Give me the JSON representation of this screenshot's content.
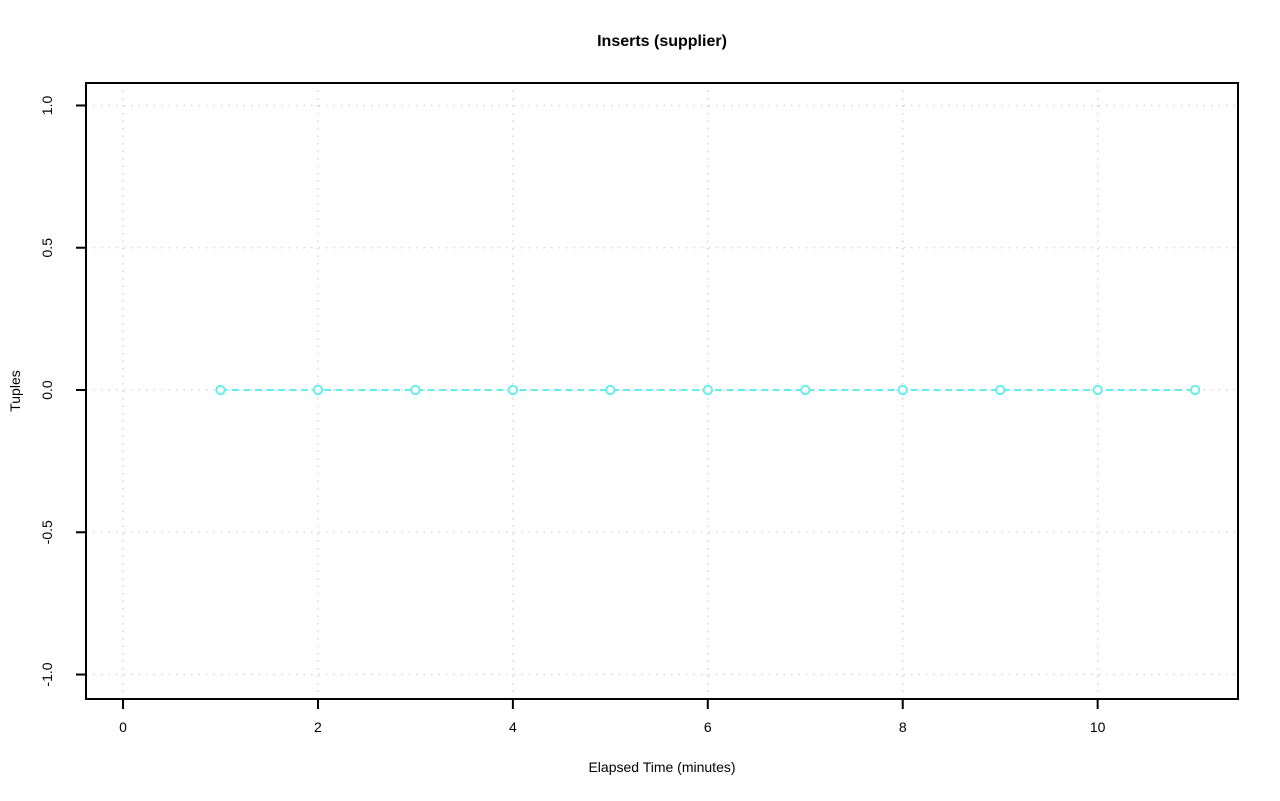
{
  "page": {
    "background": "#ffffff"
  },
  "chart_data": {
    "type": "line",
    "title": "Inserts (supplier)",
    "xlabel": "Elapsed Time (minutes)",
    "ylabel": "Tuples",
    "x": [
      1,
      2,
      3,
      4,
      5,
      6,
      7,
      8,
      9,
      10,
      11
    ],
    "series": [
      {
        "values": [
          0,
          0,
          0,
          0,
          0,
          0,
          0,
          0,
          0,
          0,
          0
        ],
        "color": "#63eeee",
        "line_style": "dashed",
        "marker": "open-circle"
      }
    ],
    "xlim": [
      -0.38,
      11.44
    ],
    "ylim": [
      -1.086,
      1.079
    ],
    "x_ticks": {
      "values": [
        0,
        2,
        4,
        6,
        8,
        10
      ],
      "labels": [
        "0",
        "2",
        "4",
        "6",
        "8",
        "10"
      ]
    },
    "y_ticks": {
      "values": [
        -1.0,
        -0.5,
        0.0,
        0.5,
        1.0
      ],
      "labels": [
        "-1.0",
        "-0.5",
        "0.0",
        "0.5",
        "1.0"
      ]
    },
    "grid": {
      "show": true,
      "style": "dotted",
      "color": "#cfcfcf"
    },
    "axis_color": "#000000",
    "tick_label_color": "#000000",
    "legend": "none"
  }
}
